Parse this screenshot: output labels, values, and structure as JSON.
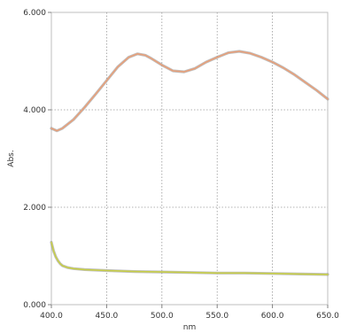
{
  "chart_data": {
    "type": "line",
    "xlabel": "nm",
    "ylabel": "Abs.",
    "xlim": [
      400,
      650
    ],
    "ylim": [
      0,
      6
    ],
    "x_ticks": [
      "400.0",
      "450.0",
      "500.0",
      "550.0",
      "600.0",
      "650.0"
    ],
    "y_ticks": [
      "0.000",
      "2.000",
      "4.000",
      "6.000"
    ],
    "grid": true,
    "series": [
      {
        "color": "#e8a07a",
        "x": [
          400,
          405,
          410,
          420,
          430,
          440,
          450,
          460,
          470,
          478,
          485,
          490,
          500,
          510,
          520,
          530,
          540,
          550,
          560,
          570,
          580,
          590,
          600,
          610,
          620,
          630,
          640,
          650
        ],
        "y": [
          3.62,
          3.57,
          3.62,
          3.8,
          4.05,
          4.32,
          4.6,
          4.88,
          5.08,
          5.15,
          5.12,
          5.06,
          4.92,
          4.8,
          4.78,
          4.85,
          4.98,
          5.08,
          5.17,
          5.2,
          5.16,
          5.08,
          4.98,
          4.86,
          4.72,
          4.56,
          4.4,
          4.22
        ]
      },
      {
        "color": "#c8cf48",
        "x": [
          400,
          402,
          404,
          406,
          408,
          410,
          415,
          420,
          430,
          450,
          475,
          500,
          525,
          550,
          575,
          600,
          625,
          650
        ],
        "y": [
          1.28,
          1.1,
          0.98,
          0.9,
          0.84,
          0.8,
          0.76,
          0.74,
          0.72,
          0.7,
          0.68,
          0.67,
          0.66,
          0.65,
          0.65,
          0.64,
          0.63,
          0.62
        ]
      }
    ]
  }
}
